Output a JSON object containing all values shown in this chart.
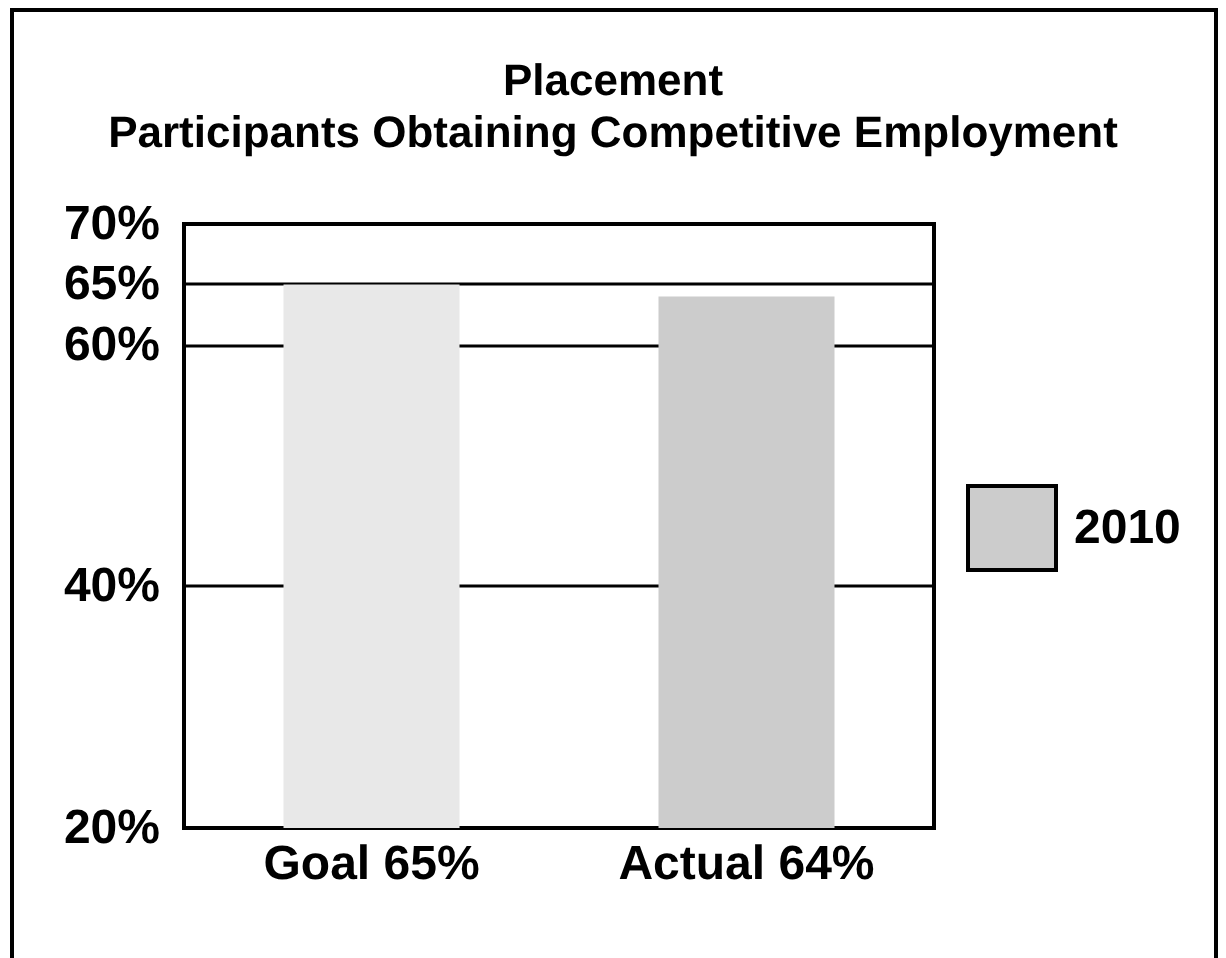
{
  "chart_data": {
    "type": "bar",
    "title": "Placement",
    "subtitle": "Participants Obtaining Competitive Employment",
    "categories": [
      "Goal 65%",
      "Actual 64%"
    ],
    "series": [
      {
        "name": "2010",
        "color": "#cccccc",
        "colors": [
          "#e8e8e8",
          "#cccccc"
        ],
        "values": [
          65,
          64
        ]
      }
    ],
    "ylim": [
      20,
      70
    ],
    "yticks": [
      {
        "value": 20,
        "label": "20%"
      },
      {
        "value": 40,
        "label": "40%"
      },
      {
        "value": 60,
        "label": "60%"
      },
      {
        "value": 65,
        "label": "65%"
      },
      {
        "value": 70,
        "label": "70%"
      }
    ],
    "grid": "y",
    "legend": "right"
  }
}
